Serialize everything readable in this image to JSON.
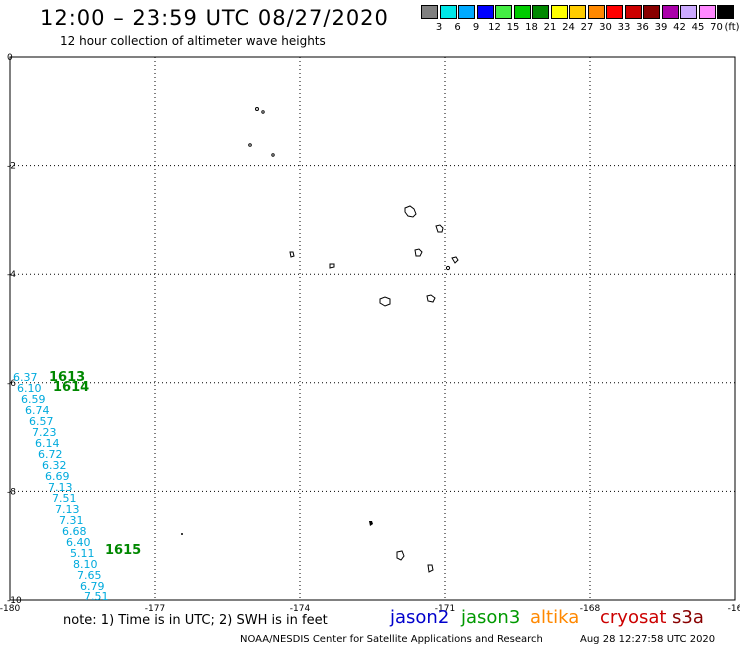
{
  "header": {
    "title": "12:00 – 23:59 UTC 08/27/2020",
    "subtitle": "12 hour collection of altimeter wave heights"
  },
  "scale": {
    "unit": "(ft)",
    "labels": [
      "3",
      "6",
      "9",
      "12",
      "15",
      "18",
      "21",
      "24",
      "27",
      "30",
      "33",
      "36",
      "39",
      "42",
      "45",
      "70"
    ],
    "colors": [
      "#808080",
      "#00e8e8",
      "#00aaff",
      "#0000ff",
      "#44ee44",
      "#00cc00",
      "#008800",
      "#ffff00",
      "#ffcc00",
      "#ff8800",
      "#ff0000",
      "#cc0000",
      "#880000",
      "#aa00aa",
      "#ccaaff",
      "#ff88ff",
      "#000000"
    ]
  },
  "map": {
    "lat_labels": [
      "0",
      "-2",
      "-4",
      "-6",
      "-8",
      "-10"
    ],
    "lon_labels": [
      "-180",
      "-177",
      "-174",
      "-171",
      "-168",
      "-16"
    ]
  },
  "track": {
    "heights": [
      "6.37",
      "6.10",
      "6.59",
      "6.74",
      "6.57",
      "7.23",
      "6.14",
      "6.72",
      "6.32",
      "6.69",
      "7.13",
      "7.51",
      "7.13",
      "7.31",
      "6.68",
      "6.40",
      "5.11",
      "8.10",
      "7.65",
      "6.79",
      "7.51"
    ],
    "passes": [
      "1613",
      "1614",
      "1615"
    ]
  },
  "footer": {
    "note": "note: 1) Time is in UTC; 2) SWH is in feet",
    "satellites": [
      {
        "name": "jason2",
        "color": "#0000cc"
      },
      {
        "name": "jason3",
        "color": "#009900"
      },
      {
        "name": "altika",
        "color": "#ff8800"
      },
      {
        "name": "cryosat",
        "color": "#cc0000"
      },
      {
        "name": "s3a",
        "color": "#880000"
      }
    ],
    "credit": "NOAA/NESDIS Center for Satellite Applications and Research",
    "timestamp": "Aug 28 12:27:58 UTC 2020"
  }
}
